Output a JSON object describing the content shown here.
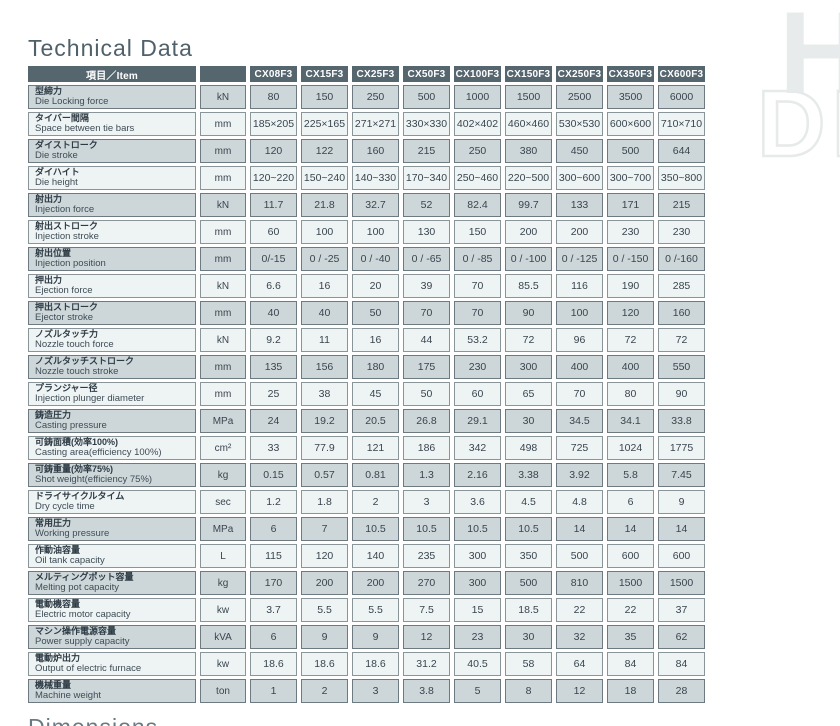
{
  "title": "Technical Data",
  "watermark": {
    "solid_letter": "H",
    "outline_letters": "DI"
  },
  "next_section_title_partial": "Dimensions",
  "table": {
    "header": {
      "item_label": "項目／Item",
      "unit_label": "",
      "models": [
        "CX08F3",
        "CX15F3",
        "CX25F3",
        "CX50F3",
        "CX100F3",
        "CX150F3",
        "CX250F3",
        "CX350F3",
        "CX600F3"
      ]
    },
    "rows": [
      {
        "jp": "型締力",
        "en": "Die Locking force",
        "unit": "kN",
        "values": [
          "80",
          "150",
          "250",
          "500",
          "1000",
          "1500",
          "2500",
          "3500",
          "6000"
        ]
      },
      {
        "jp": "タイバー間隔",
        "en": "Space between tie bars",
        "unit": "mm",
        "values": [
          "185×205",
          "225×165",
          "271×271",
          "330×330",
          "402×402",
          "460×460",
          "530×530",
          "600×600",
          "710×710"
        ]
      },
      {
        "jp": "ダイストローク",
        "en": "Die stroke",
        "unit": "mm",
        "values": [
          "120",
          "122",
          "160",
          "215",
          "250",
          "380",
          "450",
          "500",
          "644"
        ]
      },
      {
        "jp": "ダイハイト",
        "en": "Die height",
        "unit": "mm",
        "values": [
          "120~220",
          "150~240",
          "140~330",
          "170~340",
          "250~460",
          "220~500",
          "300~600",
          "300~700",
          "350~800"
        ]
      },
      {
        "jp": "射出力",
        "en": "Injection force",
        "unit": "kN",
        "values": [
          "11.7",
          "21.8",
          "32.7",
          "52",
          "82.4",
          "99.7",
          "133",
          "171",
          "215"
        ]
      },
      {
        "jp": "射出ストローク",
        "en": "Injection stroke",
        "unit": "mm",
        "values": [
          "60",
          "100",
          "100",
          "130",
          "150",
          "200",
          "200",
          "230",
          "230"
        ]
      },
      {
        "jp": "射出位置",
        "en": "Injection position",
        "unit": "mm",
        "values": [
          "0/-15",
          "0 / -25",
          "0 / -40",
          "0 / -65",
          "0 / -85",
          "0 / -100",
          "0 / -125",
          "0 / -150",
          "0 /-160"
        ]
      },
      {
        "jp": "押出力",
        "en": "Ejection force",
        "unit": "kN",
        "values": [
          "6.6",
          "16",
          "20",
          "39",
          "70",
          "85.5",
          "116",
          "190",
          "285"
        ]
      },
      {
        "jp": "押出ストローク",
        "en": "Ejector stroke",
        "unit": "mm",
        "values": [
          "40",
          "40",
          "50",
          "70",
          "70",
          "90",
          "100",
          "120",
          "160"
        ]
      },
      {
        "jp": "ノズルタッチ力",
        "en": "Nozzle touch force",
        "unit": "kN",
        "values": [
          "9.2",
          "11",
          "16",
          "44",
          "53.2",
          "72",
          "96",
          "72",
          "72"
        ]
      },
      {
        "jp": "ノズルタッチストローク",
        "en": "Nozzle touch stroke",
        "unit": "mm",
        "values": [
          "135",
          "156",
          "180",
          "175",
          "230",
          "300",
          "400",
          "400",
          "550"
        ]
      },
      {
        "jp": "プランジャー径",
        "en": "Injection plunger diameter",
        "unit": "mm",
        "values": [
          "25",
          "38",
          "45",
          "50",
          "60",
          "65",
          "70",
          "80",
          "90"
        ]
      },
      {
        "jp": "鋳造圧力",
        "en": "Casting pressure",
        "unit": "MPa",
        "values": [
          "24",
          "19.2",
          "20.5",
          "26.8",
          "29.1",
          "30",
          "34.5",
          "34.1",
          "33.8"
        ]
      },
      {
        "jp": "可鋳面積(効率100%)",
        "en": "Casting area(efficiency 100%)",
        "unit": "cm²",
        "values": [
          "33",
          "77.9",
          "121",
          "186",
          "342",
          "498",
          "725",
          "1024",
          "1775"
        ]
      },
      {
        "jp": "可鋳重量(効率75%)",
        "en": "Shot weight(efficiency 75%)",
        "unit": "kg",
        "values": [
          "0.15",
          "0.57",
          "0.81",
          "1.3",
          "2.16",
          "3.38",
          "3.92",
          "5.8",
          "7.45"
        ]
      },
      {
        "jp": "ドライサイクルタイム",
        "en": "Dry cycle time",
        "unit": "sec",
        "values": [
          "1.2",
          "1.8",
          "2",
          "3",
          "3.6",
          "4.5",
          "4.8",
          "6",
          "9"
        ]
      },
      {
        "jp": "常用圧力",
        "en": "Working pressure",
        "unit": "MPa",
        "values": [
          "6",
          "7",
          "10.5",
          "10.5",
          "10.5",
          "10.5",
          "14",
          "14",
          "14"
        ]
      },
      {
        "jp": "作動油容量",
        "en": "Oil tank capacity",
        "unit": "L",
        "values": [
          "115",
          "120",
          "140",
          "235",
          "300",
          "350",
          "500",
          "600",
          "600"
        ]
      },
      {
        "jp": "メルティングポット容量",
        "en": "Melting pot capacity",
        "unit": "kg",
        "values": [
          "170",
          "200",
          "200",
          "270",
          "300",
          "500",
          "810",
          "1500",
          "1500"
        ]
      },
      {
        "jp": "電動機容量",
        "en": "Electric motor capacity",
        "unit": "kw",
        "values": [
          "3.7",
          "5.5",
          "5.5",
          "7.5",
          "15",
          "18.5",
          "22",
          "22",
          "37"
        ]
      },
      {
        "jp": "マシン操作電源容量",
        "en": "Power supply capacity",
        "unit": "kVA",
        "values": [
          "6",
          "9",
          "9",
          "12",
          "23",
          "30",
          "32",
          "35",
          "62"
        ]
      },
      {
        "jp": "電動炉出力",
        "en": "Output of electric furnace",
        "unit": "kw",
        "values": [
          "18.6",
          "18.6",
          "18.6",
          "31.2",
          "40.5",
          "58",
          "64",
          "84",
          "84"
        ]
      },
      {
        "jp": "機械重量",
        "en": "Machine weight",
        "unit": "ton",
        "values": [
          "1",
          "2",
          "3",
          "3.8",
          "5",
          "8",
          "12",
          "18",
          "28"
        ]
      }
    ]
  }
}
